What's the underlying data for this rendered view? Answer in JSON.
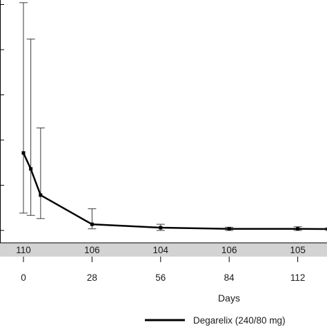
{
  "chart_data": {
    "type": "line",
    "xlabel": "Days",
    "ylabel": "",
    "x_ticks": [
      0,
      28,
      56,
      84,
      112
    ],
    "x_tick_labels": [
      "0",
      "28",
      "56",
      "84",
      "112"
    ],
    "ylim": [
      0,
      1.06
    ],
    "y_scale_note": "y tick labels not visible",
    "series": [
      {
        "name": "Degarelix (240/80 mg)",
        "color": "#000000",
        "points": [
          {
            "x": 0,
            "y": 0.34,
            "lower": 0.076,
            "upper": 1.0
          },
          {
            "x": 3,
            "y": 0.27,
            "lower": 0.066,
            "upper": 0.84
          },
          {
            "x": 7,
            "y": 0.155,
            "lower": 0.052,
            "upper": 0.45
          },
          {
            "x": 28,
            "y": 0.027,
            "lower": 0.007,
            "upper": 0.095
          },
          {
            "x": 56,
            "y": 0.012,
            "lower": 0.0,
            "upper": 0.027
          },
          {
            "x": 84,
            "y": 0.007,
            "lower": 0.0,
            "upper": 0.014
          },
          {
            "x": 112,
            "y": 0.007,
            "lower": 0.0,
            "upper": 0.016
          },
          {
            "x": 125,
            "y": 0.006,
            "lower": 0.0,
            "upper": 0.012
          }
        ]
      }
    ],
    "n_at_risk": [
      {
        "x": 0,
        "label": "110"
      },
      {
        "x": 28,
        "label": "106"
      },
      {
        "x": 56,
        "label": "104"
      },
      {
        "x": 84,
        "label": "106"
      },
      {
        "x": 112,
        "label": "105"
      }
    ],
    "legend_position": "bottom",
    "grid": false
  }
}
